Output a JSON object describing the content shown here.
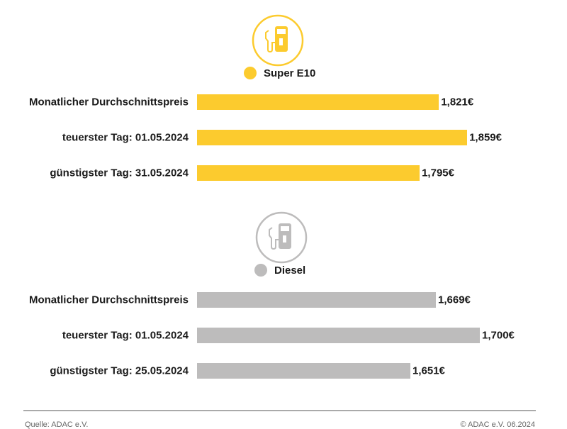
{
  "colors": {
    "super": "#fccb2e",
    "diesel": "#bdbcbc"
  },
  "chart_data": [
    {
      "type": "bar",
      "orientation": "horizontal",
      "legend": "Super E10",
      "icon": "fuel-pump-icon",
      "categories": [
        "Monatlicher Durchschnittspreis",
        "teuerster Tag: 01.05.2024",
        "günstigster Tag: 31.05.2024"
      ],
      "values": [
        1.821,
        1.859,
        1.795
      ],
      "value_labels": [
        "1,821€",
        "1,859€",
        "1,795€"
      ]
    },
    {
      "type": "bar",
      "orientation": "horizontal",
      "legend": "Diesel",
      "icon": "fuel-pump-icon",
      "categories": [
        "Monatlicher Durchschnittspreis",
        "teuerster Tag: 01.05.2024",
        "günstigster Tag: 25.05.2024"
      ],
      "values": [
        1.669,
        1.7,
        1.651
      ],
      "value_labels": [
        "1,669€",
        "1,700€",
        "1,651€"
      ]
    }
  ],
  "footer": {
    "source": "Quelle: ADAC e.V.",
    "copyright": "© ADAC e.V. 06.2024"
  }
}
